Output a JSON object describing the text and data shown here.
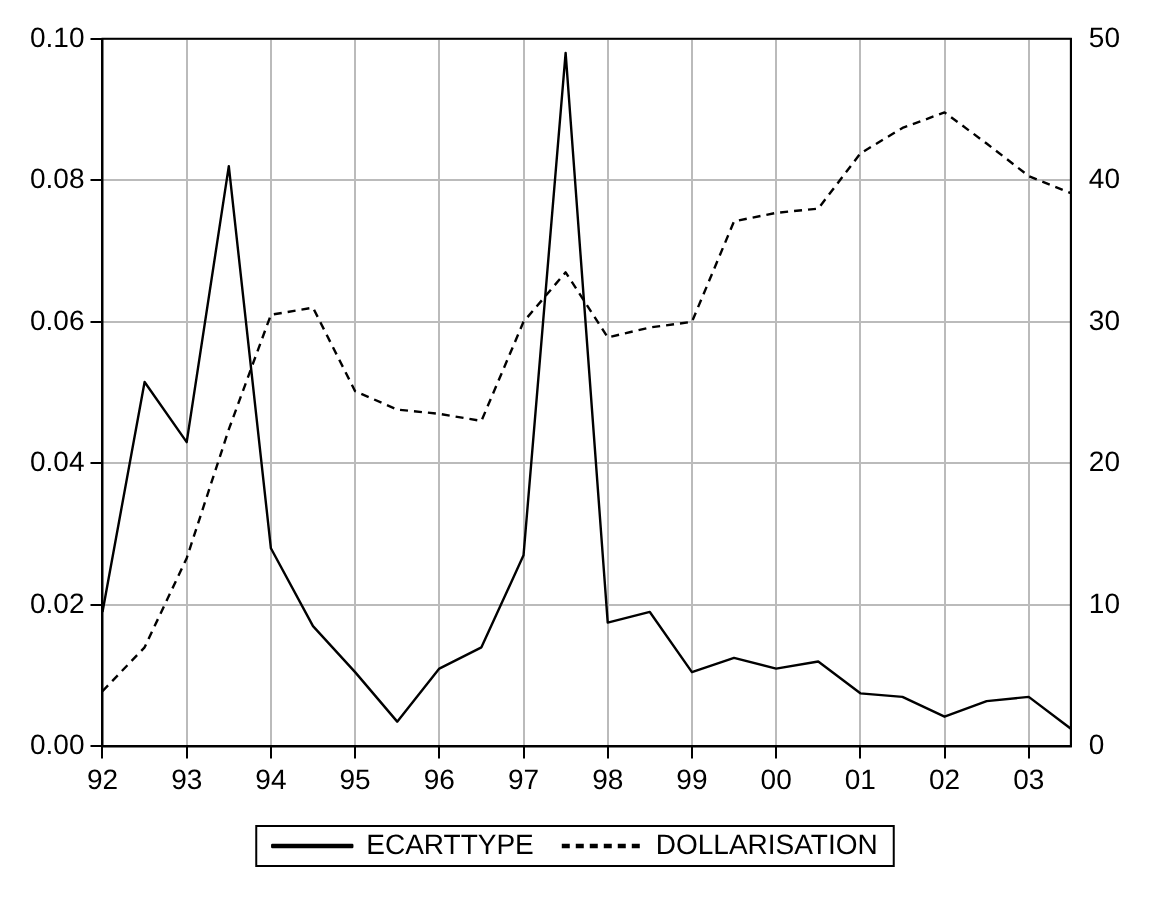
{
  "chart_data": {
    "type": "line",
    "x": [
      1992,
      1992.5,
      1993,
      1993.5,
      1994,
      1994.5,
      1995,
      1995.5,
      1996,
      1996.5,
      1997,
      1997.5,
      1998,
      1998.5,
      1999,
      1999.5,
      2000,
      2000.5,
      2001,
      2001.5,
      2002,
      2002.5,
      2003,
      2003.5
    ],
    "series": [
      {
        "name": "ECARTTYPE",
        "color": "#000000",
        "line_style": "solid",
        "values": [
          0.019,
          0.0515,
          0.043,
          0.082,
          0.028,
          0.017,
          0.0105,
          0.0035,
          0.011,
          0.014,
          0.027,
          0.098,
          0.0175,
          0.019,
          0.0105,
          0.0125,
          0.011,
          0.012,
          0.0075,
          0.007,
          0.0042,
          0.0064,
          0.007,
          0.0025
        ]
      },
      {
        "name": "DOLLARISATION",
        "color": "#000000",
        "line_style": "dashed",
        "axis": "y2",
        "values": [
          3.9,
          7.0,
          13.3,
          22.4,
          30.5,
          31.0,
          25.1,
          23.8,
          23.5,
          23.0,
          30.0,
          33.5,
          28.9,
          29.6,
          30.0,
          37.1,
          37.7,
          38.0,
          41.9,
          43.7,
          44.8,
          42.6,
          40.3,
          39.1
        ]
      }
    ],
    "xlim": [
      1992,
      2003.5
    ],
    "xticks": [
      {
        "value": 1992,
        "label": "92"
      },
      {
        "value": 1993,
        "label": "93"
      },
      {
        "value": 1994,
        "label": "94"
      },
      {
        "value": 1995,
        "label": "95"
      },
      {
        "value": 1996,
        "label": "96"
      },
      {
        "value": 1997,
        "label": "97"
      },
      {
        "value": 1998,
        "label": "98"
      },
      {
        "value": 1999,
        "label": "99"
      },
      {
        "value": 2000,
        "label": "00"
      },
      {
        "value": 2001,
        "label": "01"
      },
      {
        "value": 2002,
        "label": "02"
      },
      {
        "value": 2003,
        "label": "03"
      }
    ],
    "ylim": [
      0,
      0.1
    ],
    "yticks": [
      {
        "value": 0,
        "label": "0.00"
      },
      {
        "value": 0.02,
        "label": "0.02"
      },
      {
        "value": 0.04,
        "label": "0.04"
      },
      {
        "value": 0.06,
        "label": "0.06"
      },
      {
        "value": 0.08,
        "label": "0.08"
      },
      {
        "value": 0.1,
        "label": "0.10"
      }
    ],
    "y2lim": [
      0,
      50
    ],
    "y2ticks": [
      0,
      10,
      20,
      30,
      40,
      50
    ],
    "grid": true,
    "legend": "bottom",
    "marker": "none"
  }
}
